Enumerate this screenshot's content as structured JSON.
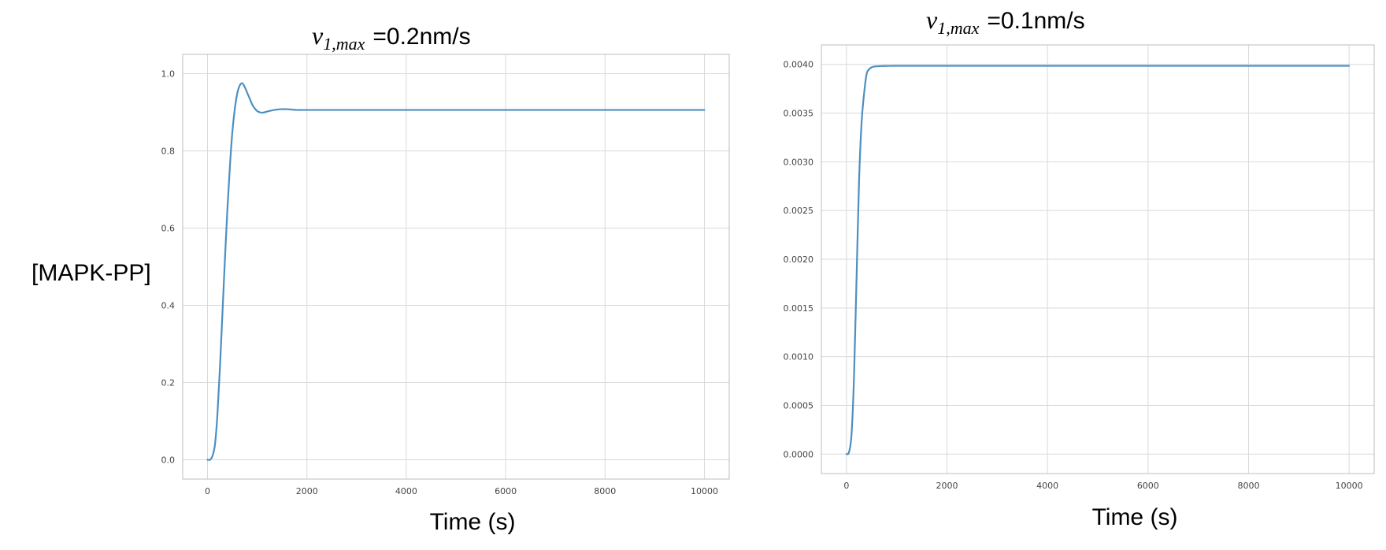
{
  "chart_data": [
    {
      "type": "line",
      "title": {
        "var": "v",
        "sub": "1,max",
        "value": "=0.2nm/s"
      },
      "ylabel": "[MAPK-PP]",
      "xlabel": "Time (s)",
      "xlim": [
        -500,
        10500
      ],
      "ylim": [
        -0.05,
        1.05
      ],
      "xticks": [
        0,
        2000,
        4000,
        6000,
        8000,
        10000
      ],
      "xtick_labels": [
        "0",
        "2000",
        "4000",
        "6000",
        "8000",
        "10000"
      ],
      "yticks": [
        0.0,
        0.2,
        0.4,
        0.6,
        0.8,
        1.0
      ],
      "ytick_labels": [
        "0.0",
        "0.2",
        "0.4",
        "0.6",
        "0.8",
        "1.0"
      ],
      "grid": true,
      "color": "#4c8fc2",
      "series": [
        {
          "x": [
            0,
            50,
            100,
            150,
            200,
            250,
            300,
            350,
            400,
            450,
            500,
            550,
            600,
            650,
            700,
            750,
            800,
            850,
            900,
            950,
            1000,
            1050,
            1100,
            1150,
            1200,
            1300,
            1400,
            1500,
            1600,
            1700,
            1800,
            2000,
            2500,
            3000,
            4000,
            5000,
            6000,
            7000,
            8000,
            9000,
            10000
          ],
          "y": [
            0.0,
            0.0,
            0.01,
            0.04,
            0.12,
            0.24,
            0.38,
            0.52,
            0.65,
            0.76,
            0.85,
            0.91,
            0.95,
            0.97,
            0.975,
            0.965,
            0.95,
            0.935,
            0.92,
            0.91,
            0.903,
            0.9,
            0.899,
            0.9,
            0.902,
            0.905,
            0.907,
            0.908,
            0.908,
            0.907,
            0.906,
            0.906,
            0.906,
            0.906,
            0.906,
            0.906,
            0.906,
            0.906,
            0.906,
            0.906,
            0.906
          ]
        }
      ]
    },
    {
      "type": "line",
      "title": {
        "var": "v",
        "sub": "1,max",
        "value": "=0.1nm/s"
      },
      "ylabel": "",
      "xlabel": "Time (s)",
      "xlim": [
        -500,
        10500
      ],
      "ylim": [
        -0.0002,
        0.0042
      ],
      "xticks": [
        0,
        2000,
        4000,
        6000,
        8000,
        10000
      ],
      "xtick_labels": [
        "0",
        "2000",
        "4000",
        "6000",
        "8000",
        "10000"
      ],
      "yticks": [
        0.0,
        0.0005,
        0.001,
        0.0015,
        0.002,
        0.0025,
        0.003,
        0.0035,
        0.004
      ],
      "ytick_labels": [
        "0.0000",
        "0.0005",
        "0.0010",
        "0.0015",
        "0.0020",
        "0.0025",
        "0.0030",
        "0.0035",
        "0.0040"
      ],
      "grid": true,
      "color": "#4c8fc2",
      "series": [
        {
          "x": [
            0,
            50,
            100,
            150,
            200,
            250,
            300,
            350,
            400,
            450,
            500,
            550,
            600,
            650,
            700,
            800,
            900,
            1000,
            2000,
            3000,
            4000,
            5000,
            6000,
            7000,
            8000,
            9000,
            10000
          ],
          "y": [
            0.0,
            2e-05,
            0.0002,
            0.0008,
            0.0018,
            0.0028,
            0.0034,
            0.0037,
            0.0039,
            0.00395,
            0.00397,
            0.003978,
            0.00398,
            0.003982,
            0.003983,
            0.003984,
            0.003985,
            0.003985,
            0.003985,
            0.003985,
            0.003985,
            0.003985,
            0.003985,
            0.003985,
            0.003985,
            0.003985,
            0.003985
          ]
        }
      ]
    }
  ]
}
